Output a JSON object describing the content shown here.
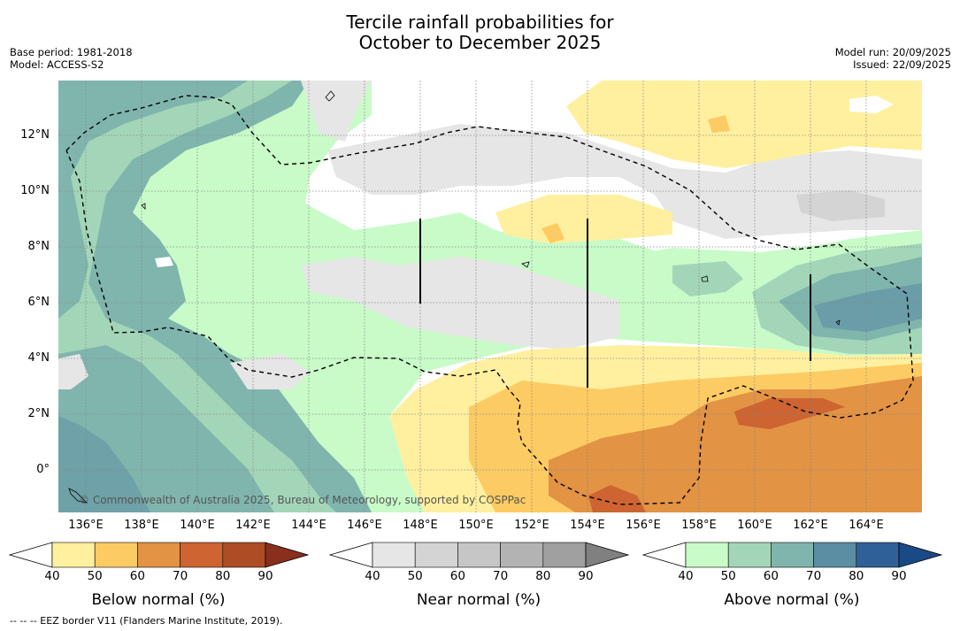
{
  "title": {
    "line1": "Tercile rainfall probabilities for",
    "line2": "October to December 2025"
  },
  "meta": {
    "base_period": "Base period: 1981-2018",
    "model": "Model: ACCESS-S2",
    "model_run": "Model run: 20/09/2025",
    "issued": "Issued: 22/09/2025"
  },
  "map": {
    "copyright": "© Commonwealth of Australia 2025, Bureau of Meteorology, supported by COSPPac",
    "lat_labels": [
      "12°N",
      "10°N",
      "8°N",
      "6°N",
      "4°N",
      "2°N",
      "0°"
    ],
    "lon_labels": [
      "136°E",
      "138°E",
      "140°E",
      "142°E",
      "144°E",
      "146°E",
      "148°E",
      "150°E",
      "152°E",
      "154°E",
      "156°E",
      "158°E",
      "160°E",
      "162°E",
      "164°E"
    ]
  },
  "colorbars": [
    {
      "name": "below",
      "title": "Below normal (%)",
      "ticks": [
        "40",
        "50",
        "60",
        "70",
        "80",
        "90"
      ],
      "colors": [
        "#ffffff",
        "#fff0a0",
        "#fdcb63",
        "#e29343",
        "#cd6431",
        "#ad4c25",
        "#8a2f1d"
      ]
    },
    {
      "name": "near",
      "title": "Near normal (%)",
      "ticks": [
        "40",
        "50",
        "60",
        "70",
        "80",
        "90"
      ],
      "colors": [
        "#ffffff",
        "#e6e6e6",
        "#d4d4d4",
        "#c6c6c6",
        "#b3b3b3",
        "#a0a0a0",
        "#808080"
      ]
    },
    {
      "name": "above",
      "title": "Above normal (%)",
      "ticks": [
        "40",
        "50",
        "60",
        "70",
        "80",
        "90"
      ],
      "colors": [
        "#ffffff",
        "#c8fbc8",
        "#a3d6b8",
        "#80b5ad",
        "#5b8ea3",
        "#2f6097",
        "#1a4a86"
      ]
    }
  ],
  "footnote": "--  --  -- EEZ border V11 (Flanders Marine Institute, 2019)."
}
